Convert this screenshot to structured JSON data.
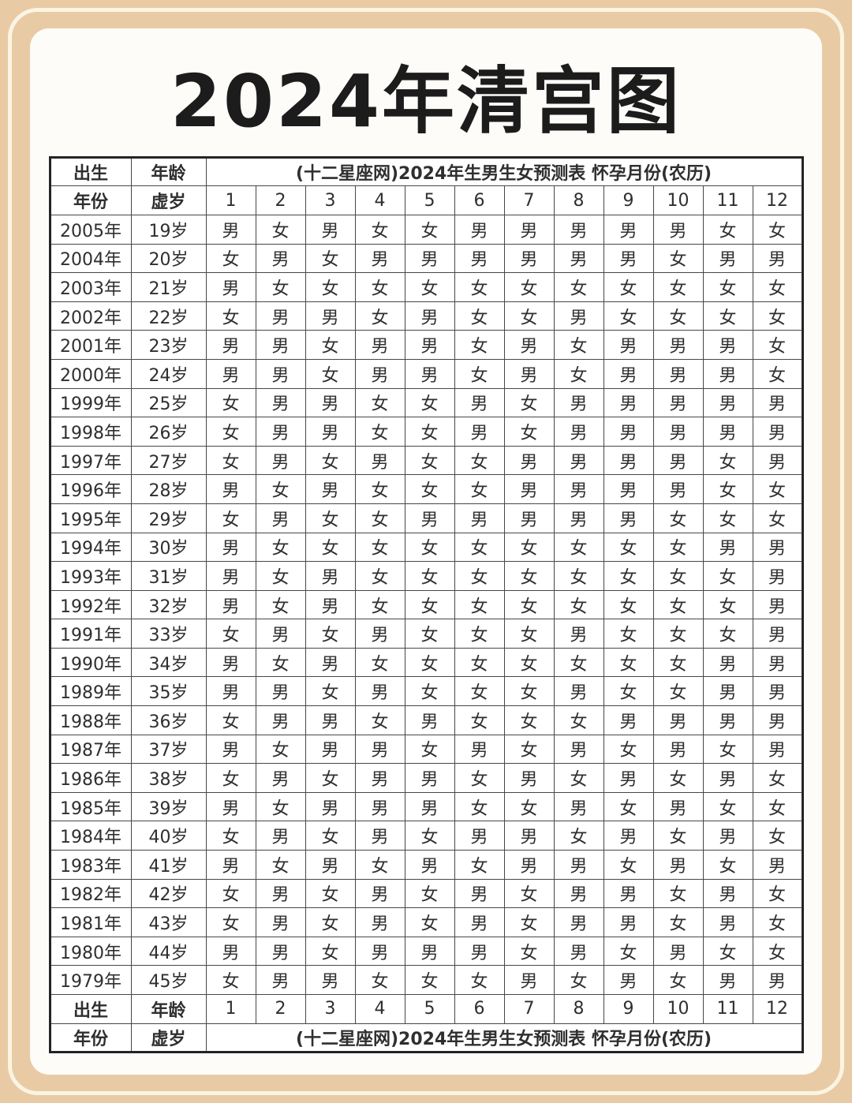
{
  "labels": {
    "birth": "出生",
    "year": "年份",
    "age": "年龄",
    "nominal_age": "虚岁"
  },
  "legend": {
    "male": "男",
    "female": "女"
  },
  "colors": {
    "male_bg": "#cdd4e8",
    "female_bg": "#f7e7d1",
    "frame_bg": "#e8cba4",
    "frame_line": "#fbf4e3",
    "card_bg": "#fefcf8",
    "grid": "#474747",
    "text": "#2f2f2f"
  },
  "chart_data": {
    "type": "table",
    "title": "2024年清宫图",
    "banner": "(十二星座网)2024年生男生女预测表 怀孕月份(农历)",
    "column_headers_left": [
      "出生年份",
      "年龄虚岁"
    ],
    "month_headers": [
      "1",
      "2",
      "3",
      "4",
      "5",
      "6",
      "7",
      "8",
      "9",
      "10",
      "11",
      "12"
    ],
    "rows": [
      {
        "year": "2005年",
        "age": "19岁",
        "values": [
          "男",
          "女",
          "男",
          "女",
          "女",
          "男",
          "男",
          "男",
          "男",
          "男",
          "女",
          "女"
        ]
      },
      {
        "year": "2004年",
        "age": "20岁",
        "values": [
          "女",
          "男",
          "女",
          "男",
          "男",
          "男",
          "男",
          "男",
          "男",
          "女",
          "男",
          "男"
        ]
      },
      {
        "year": "2003年",
        "age": "21岁",
        "values": [
          "男",
          "女",
          "女",
          "女",
          "女",
          "女",
          "女",
          "女",
          "女",
          "女",
          "女",
          "女"
        ]
      },
      {
        "year": "2002年",
        "age": "22岁",
        "values": [
          "女",
          "男",
          "男",
          "女",
          "男",
          "女",
          "女",
          "男",
          "女",
          "女",
          "女",
          "女"
        ]
      },
      {
        "year": "2001年",
        "age": "23岁",
        "values": [
          "男",
          "男",
          "女",
          "男",
          "男",
          "女",
          "男",
          "女",
          "男",
          "男",
          "男",
          "女"
        ]
      },
      {
        "year": "2000年",
        "age": "24岁",
        "values": [
          "男",
          "男",
          "女",
          "男",
          "男",
          "女",
          "男",
          "女",
          "男",
          "男",
          "男",
          "女"
        ]
      },
      {
        "year": "1999年",
        "age": "25岁",
        "values": [
          "女",
          "男",
          "男",
          "女",
          "女",
          "男",
          "女",
          "男",
          "男",
          "男",
          "男",
          "男"
        ]
      },
      {
        "year": "1998年",
        "age": "26岁",
        "values": [
          "女",
          "男",
          "男",
          "女",
          "女",
          "男",
          "女",
          "男",
          "男",
          "男",
          "男",
          "男"
        ]
      },
      {
        "year": "1997年",
        "age": "27岁",
        "values": [
          "女",
          "男",
          "女",
          "男",
          "女",
          "女",
          "男",
          "男",
          "男",
          "男",
          "女",
          "男"
        ]
      },
      {
        "year": "1996年",
        "age": "28岁",
        "values": [
          "男",
          "女",
          "男",
          "女",
          "女",
          "女",
          "男",
          "男",
          "男",
          "男",
          "女",
          "女"
        ]
      },
      {
        "year": "1995年",
        "age": "29岁",
        "values": [
          "女",
          "男",
          "女",
          "女",
          "男",
          "男",
          "男",
          "男",
          "男",
          "女",
          "女",
          "女"
        ]
      },
      {
        "year": "1994年",
        "age": "30岁",
        "values": [
          "男",
          "女",
          "女",
          "女",
          "女",
          "女",
          "女",
          "女",
          "女",
          "女",
          "男",
          "男"
        ]
      },
      {
        "year": "1993年",
        "age": "31岁",
        "values": [
          "男",
          "女",
          "男",
          "女",
          "女",
          "女",
          "女",
          "女",
          "女",
          "女",
          "女",
          "男"
        ]
      },
      {
        "year": "1992年",
        "age": "32岁",
        "values": [
          "男",
          "女",
          "男",
          "女",
          "女",
          "女",
          "女",
          "女",
          "女",
          "女",
          "女",
          "男"
        ]
      },
      {
        "year": "1991年",
        "age": "33岁",
        "values": [
          "女",
          "男",
          "女",
          "男",
          "女",
          "女",
          "女",
          "男",
          "女",
          "女",
          "女",
          "男"
        ]
      },
      {
        "year": "1990年",
        "age": "34岁",
        "values": [
          "男",
          "女",
          "男",
          "女",
          "女",
          "女",
          "女",
          "女",
          "女",
          "女",
          "男",
          "男"
        ]
      },
      {
        "year": "1989年",
        "age": "35岁",
        "values": [
          "男",
          "男",
          "女",
          "男",
          "女",
          "女",
          "女",
          "男",
          "女",
          "女",
          "男",
          "男"
        ]
      },
      {
        "year": "1988年",
        "age": "36岁",
        "values": [
          "女",
          "男",
          "男",
          "女",
          "男",
          "女",
          "女",
          "女",
          "男",
          "男",
          "男",
          "男"
        ]
      },
      {
        "year": "1987年",
        "age": "37岁",
        "values": [
          "男",
          "女",
          "男",
          "男",
          "女",
          "男",
          "女",
          "男",
          "女",
          "男",
          "女",
          "男"
        ]
      },
      {
        "year": "1986年",
        "age": "38岁",
        "values": [
          "女",
          "男",
          "女",
          "男",
          "男",
          "女",
          "男",
          "女",
          "男",
          "女",
          "男",
          "女"
        ]
      },
      {
        "year": "1985年",
        "age": "39岁",
        "values": [
          "男",
          "女",
          "男",
          "男",
          "男",
          "女",
          "女",
          "男",
          "女",
          "男",
          "女",
          "女"
        ]
      },
      {
        "year": "1984年",
        "age": "40岁",
        "values": [
          "女",
          "男",
          "女",
          "男",
          "女",
          "男",
          "男",
          "女",
          "男",
          "女",
          "男",
          "女"
        ]
      },
      {
        "year": "1983年",
        "age": "41岁",
        "values": [
          "男",
          "女",
          "男",
          "女",
          "男",
          "女",
          "男",
          "男",
          "女",
          "男",
          "女",
          "男"
        ]
      },
      {
        "year": "1982年",
        "age": "42岁",
        "values": [
          "女",
          "男",
          "女",
          "男",
          "女",
          "男",
          "女",
          "男",
          "男",
          "女",
          "男",
          "女"
        ]
      },
      {
        "year": "1981年",
        "age": "43岁",
        "values": [
          "女",
          "男",
          "女",
          "男",
          "女",
          "男",
          "女",
          "男",
          "男",
          "女",
          "男",
          "女"
        ]
      },
      {
        "year": "1980年",
        "age": "44岁",
        "values": [
          "男",
          "男",
          "女",
          "男",
          "男",
          "男",
          "女",
          "男",
          "女",
          "男",
          "女",
          "女"
        ]
      },
      {
        "year": "1979年",
        "age": "45岁",
        "values": [
          "女",
          "男",
          "男",
          "女",
          "女",
          "女",
          "男",
          "女",
          "男",
          "女",
          "男",
          "男"
        ]
      }
    ]
  }
}
